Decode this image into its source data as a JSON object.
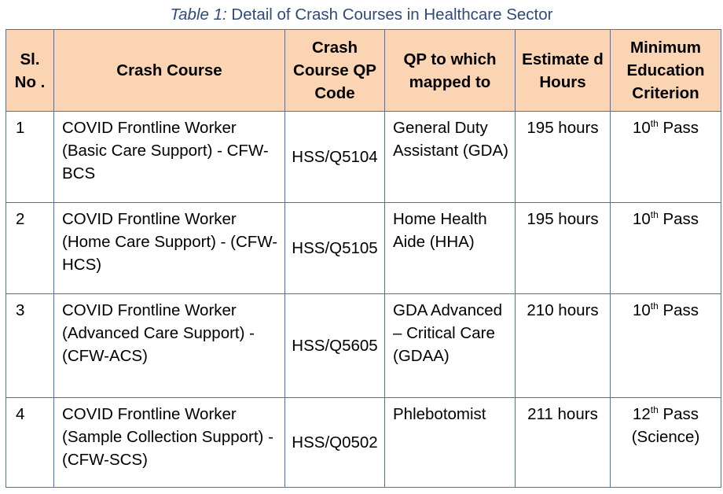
{
  "caption": {
    "lead": "Table 1:",
    "text": " Detail of Crash Courses in Healthcare Sector"
  },
  "headers": {
    "sl_no": "Sl. No .",
    "crash_course": "Crash Course",
    "qp_code": "Crash Course QP Code",
    "qp_mapped": "QP to which mapped to",
    "hours": "Estimate d Hours",
    "education": "Minimum Education Criterion"
  },
  "rows": [
    {
      "sl": "1",
      "course": "COVID Frontline Worker (Basic Care Support) - CFW-BCS",
      "qp_code": "HSS/Q5104",
      "mapped": "General Duty Assistant (GDA)",
      "hours": "195 hours",
      "edu_num": "10",
      "edu_sup": "th",
      "edu_rest": " Pass"
    },
    {
      "sl": "2",
      "course": "COVID Frontline Worker (Home Care Support) - (CFW-HCS)",
      "qp_code": "HSS/Q5105",
      "mapped": "Home Health Aide (HHA)",
      "hours": "195 hours",
      "edu_num": "10",
      "edu_sup": "th",
      "edu_rest": " Pass"
    },
    {
      "sl": "3",
      "course": "COVID Frontline Worker (Advanced Care Support) - (CFW-ACS)",
      "qp_code": "HSS/Q5605",
      "mapped": "GDA Advanced – Critical Care (GDAA)",
      "hours": "210 hours",
      "edu_num": "10",
      "edu_sup": "th",
      "edu_rest": " Pass"
    },
    {
      "sl": "4",
      "course": "COVID Frontline Worker (Sample Collection Support) -(CFW-SCS)",
      "qp_code": "HSS/Q0502",
      "mapped": "Phlebotomist",
      "hours": "211 hours",
      "edu_num": "12",
      "edu_sup": "th",
      "edu_rest": " Pass (Science)"
    }
  ]
}
